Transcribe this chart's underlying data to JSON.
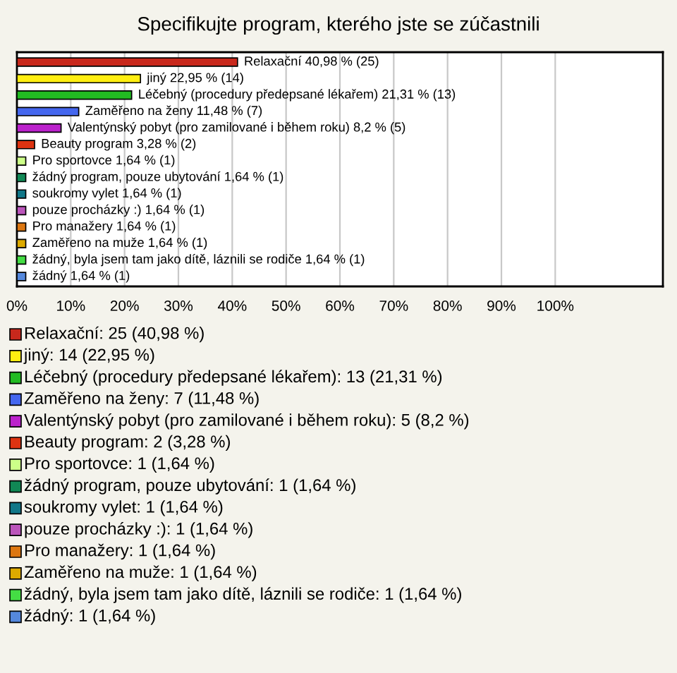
{
  "chart_data": {
    "type": "bar",
    "orientation": "horizontal",
    "title": "Specifikujte program, kterého jste se zúčastnili",
    "categories": [
      "Relaxační",
      "jiný",
      "Léčebný (procedury předepsané lékařem)",
      "Zaměřeno na ženy",
      "Valentýnský pobyt (pro zamilované i během roku)",
      "Beauty program",
      "Pro sportovce",
      "žádný program, pouze ubytování",
      "soukromy vylet",
      "pouze procházky :)",
      "Pro manažery",
      "Zaměřeno na muže",
      "žádný, byla jsem tam jako dítě, láznili se rodiče",
      "žádný"
    ],
    "values": [
      40.98,
      22.95,
      21.31,
      11.48,
      8.2,
      3.28,
      1.64,
      1.64,
      1.64,
      1.64,
      1.64,
      1.64,
      1.64,
      1.64
    ],
    "value_labels": [
      "40,98 % (25)",
      "22,95 % (14)",
      "21,31 % (13)",
      "11,48 % (7)",
      "8,2 % (5)",
      "3,28 % (2)",
      "1,64 % (1)",
      "1,64 % (1)",
      "1,64 % (1)",
      "1,64 % (1)",
      "1,64 % (1)",
      "1,64 % (1)",
      "1,64 % (1)",
      "1,64 % (1)"
    ],
    "colors": [
      "#c8281c",
      "#ffee11",
      "#22bb22",
      "#4466ee",
      "#bb22cc",
      "#dd3311",
      "#ccff88",
      "#118855",
      "#117788",
      "#bb55bb",
      "#dd7711",
      "#ddaa00",
      "#44dd44",
      "#5588dd"
    ],
    "xlim": [
      0,
      120
    ],
    "xticks": [
      {
        "value": 0,
        "label": "0%"
      },
      {
        "value": 10,
        "label": "10%"
      },
      {
        "value": 20,
        "label": "20%"
      },
      {
        "value": 30,
        "label": "30%"
      },
      {
        "value": 40,
        "label": "40%"
      },
      {
        "value": 50,
        "label": "50%"
      },
      {
        "value": 60,
        "label": "60%"
      },
      {
        "value": 70,
        "label": "70%"
      },
      {
        "value": 80,
        "label": "80%"
      },
      {
        "value": 90,
        "label": "90%"
      },
      {
        "value": 100,
        "label": "100%"
      }
    ],
    "grid": "x",
    "tick_labels": "x",
    "annotations": [
      "Relaxační: 25 (40,98 %)",
      "jiný: 14 (22,95 %)",
      "Léčebný (procedury předepsané lékařem): 13 (21,31 %)",
      "Zaměřeno na ženy: 7 (11,48 %)",
      "Valentýnský pobyt (pro zamilované i během roku): 5 (8,2 %)",
      "Beauty program: 2 (3,28 %)",
      "Pro sportovce: 1 (1,64 %)",
      "žádný program, pouze ubytování: 1 (1,64 %)",
      "soukromy vylet: 1 (1,64 %)",
      "pouze procházky :): 1 (1,64 %)",
      "Pro manažery: 1 (1,64 %)",
      "Zaměřeno na muže: 1 (1,64 %)",
      "žádný, byla jsem tam jako dítě, láznili se rodiče: 1 (1,64 %)",
      "žádný: 1 (1,64 %)"
    ]
  }
}
